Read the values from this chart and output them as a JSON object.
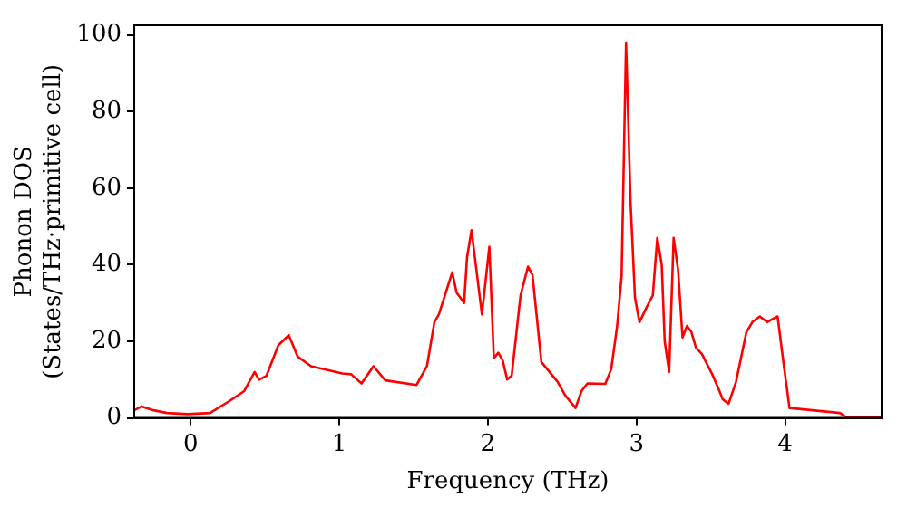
{
  "chart_data": {
    "type": "line",
    "xlabel": "Frequency (THz)",
    "ylabel": "Phonon DOS\n(States/THz·primitive cell)",
    "x": [
      -0.38,
      -0.33,
      -0.25,
      -0.16,
      -0.02,
      0.13,
      0.26,
      0.36,
      0.43,
      0.46,
      0.51,
      0.59,
      0.66,
      0.72,
      0.81,
      1.02,
      1.08,
      1.15,
      1.23,
      1.31,
      1.52,
      1.59,
      1.64,
      1.67,
      1.76,
      1.79,
      1.84,
      1.86,
      1.89,
      1.96,
      2.01,
      2.04,
      2.07,
      2.1,
      2.13,
      2.16,
      2.22,
      2.27,
      2.3,
      2.36,
      2.47,
      2.52,
      2.59,
      2.63,
      2.67,
      2.79,
      2.83,
      2.87,
      2.9,
      2.93,
      2.96,
      2.99,
      3.02,
      3.07,
      3.11,
      3.14,
      3.17,
      3.19,
      3.22,
      3.25,
      3.28,
      3.31,
      3.34,
      3.37,
      3.4,
      3.44,
      3.51,
      3.55,
      3.58,
      3.62,
      3.67,
      3.74,
      3.78,
      3.83,
      3.88,
      3.91,
      3.95,
      3.99,
      4.03,
      4.37,
      4.41,
      4.65
    ],
    "series": [
      {
        "color": "#ff0000",
        "values": [
          2,
          3,
          2,
          1.3,
          1,
          1.3,
          4.4,
          7,
          12,
          10,
          11,
          19,
          21.6,
          16,
          13.5,
          11.6,
          11.4,
          9,
          13.5,
          9.8,
          8.6,
          13.5,
          25,
          27,
          38,
          32.7,
          30,
          42,
          49,
          27,
          44.7,
          15.6,
          17,
          15,
          10,
          11,
          32,
          39.5,
          37.4,
          14.6,
          9.4,
          5.9,
          2.6,
          7,
          9,
          8.9,
          12.7,
          24,
          37,
          98,
          56.6,
          31.4,
          25,
          29,
          32,
          47,
          40,
          20,
          12,
          47,
          38.7,
          21,
          24,
          22.4,
          18.4,
          16.7,
          11.4,
          7.8,
          4.9,
          3.7,
          9.4,
          22.4,
          25,
          26.5,
          25,
          25.7,
          26.5,
          14.3,
          2.6,
          1.3,
          0.2,
          0.2
        ]
      }
    ],
    "xlim": [
      -0.38,
      4.65
    ],
    "xticks": [
      0,
      1,
      2,
      3,
      4
    ],
    "ylim": [
      0,
      102.5
    ],
    "yticks": [
      0,
      20,
      40,
      60,
      80,
      100
    ],
    "grid": false,
    "legend": false,
    "marker": "none",
    "line_style": "solid"
  }
}
